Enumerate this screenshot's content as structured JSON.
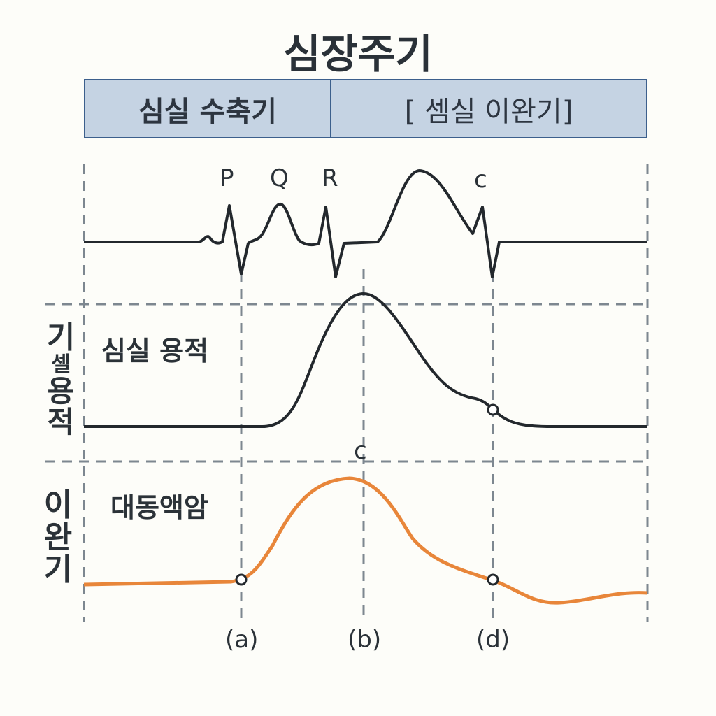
{
  "title": "심장주기",
  "phases": {
    "systole": "심실 수축기",
    "diastole": "[ 셈실 이완기]"
  },
  "ecg": {
    "labels": [
      "P",
      "Q",
      "R",
      "c"
    ]
  },
  "volume": {
    "label": "심실 용적",
    "side_label": [
      "기",
      "셀",
      "용",
      "적"
    ],
    "peak_marker": "c"
  },
  "pressure": {
    "label": "대동액암",
    "side_label": [
      "이",
      "완",
      "기"
    ]
  },
  "time_markers": [
    "(a)",
    "(b)",
    "(d)"
  ],
  "colors": {
    "trace": "#23282d",
    "pressure": "#e8863a",
    "phase_fill": "#c5d3e3",
    "phase_border": "#3c5f8c",
    "grid": "#7d8790"
  }
}
